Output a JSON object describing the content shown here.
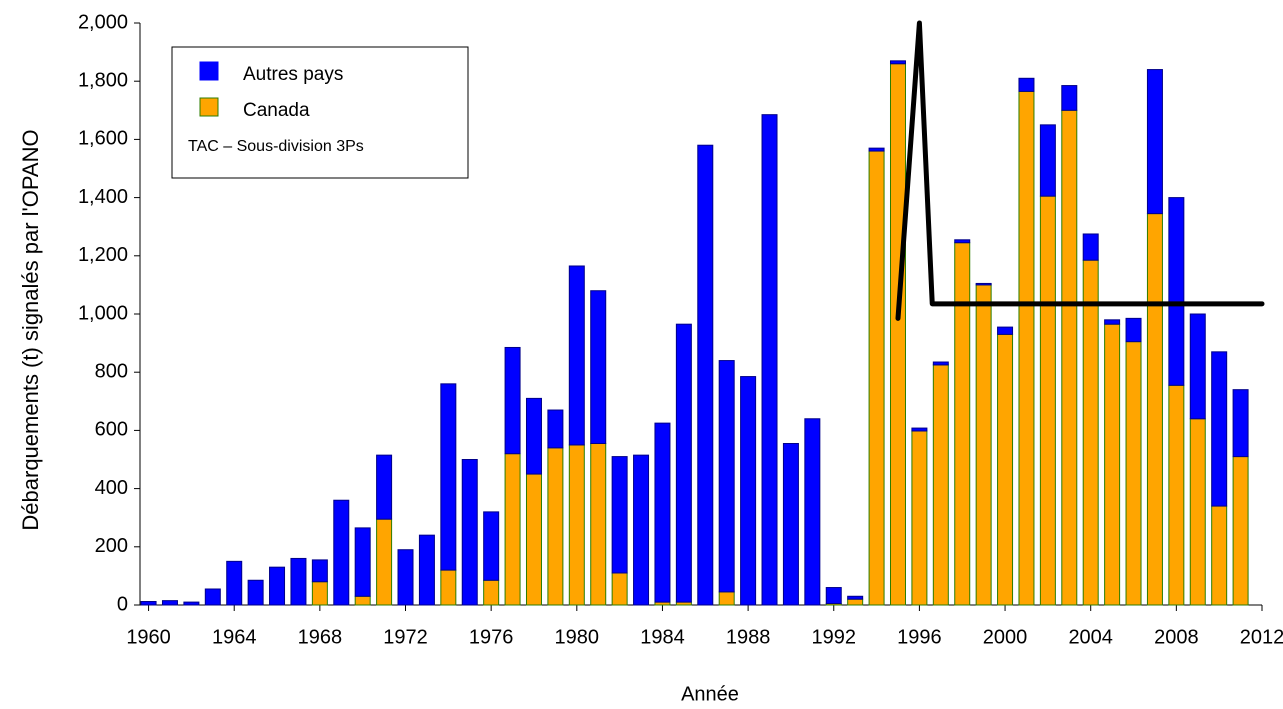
{
  "chart_data": {
    "type": "bar",
    "stacked": true,
    "x_label": "Année",
    "y_label": "Débarquements (t) signalés par l'OPANO",
    "x": [
      1960,
      1961,
      1962,
      1963,
      1964,
      1965,
      1966,
      1967,
      1968,
      1969,
      1970,
      1971,
      1972,
      1973,
      1974,
      1975,
      1976,
      1977,
      1978,
      1979,
      1980,
      1981,
      1982,
      1983,
      1984,
      1985,
      1986,
      1987,
      1988,
      1989,
      1990,
      1991,
      1992,
      1993,
      1994,
      1995,
      1996,
      1997,
      1998,
      1999,
      2000,
      2001,
      2002,
      2003,
      2004,
      2005,
      2006,
      2007,
      2008,
      2009,
      2010,
      2011
    ],
    "series": [
      {
        "name": "Autres pays",
        "color": "#0000ff",
        "values": [
          12,
          15,
          10,
          55,
          150,
          85,
          130,
          160,
          75,
          360,
          235,
          220,
          190,
          240,
          640,
          500,
          235,
          365,
          260,
          130,
          615,
          525,
          400,
          515,
          615,
          955,
          1580,
          795,
          785,
          1685,
          555,
          640,
          55,
          10,
          10,
          10,
          10,
          10,
          10,
          5,
          25,
          45,
          245,
          85,
          90,
          15,
          80,
          495,
          645,
          360,
          530,
          230
        ]
      },
      {
        "name": "Canada",
        "color": "#ffa500",
        "values": [
          0,
          0,
          0,
          0,
          0,
          0,
          0,
          0,
          80,
          0,
          30,
          295,
          0,
          0,
          120,
          0,
          85,
          520,
          450,
          540,
          550,
          555,
          110,
          0,
          10,
          10,
          0,
          45,
          0,
          0,
          0,
          0,
          5,
          20,
          1560,
          1860,
          598,
          825,
          1245,
          1100,
          930,
          1765,
          1405,
          1700,
          1185,
          965,
          905,
          1345,
          755,
          640,
          340,
          510
        ]
      },
      {
        "name": "TAC – Sous-division 3Ps",
        "type": "line",
        "color": "#000000",
        "x": [
          1995,
          1996,
          1996.6,
          2012
        ],
        "values": [
          985,
          2000,
          1035,
          1035
        ]
      }
    ],
    "xlim": [
      1959.6,
      2012
    ],
    "xticks": [
      1960,
      1964,
      1968,
      1972,
      1976,
      1980,
      1984,
      1988,
      1992,
      1996,
      2000,
      2004,
      2008,
      2012
    ],
    "ylim": [
      0,
      2000
    ],
    "yticks": [
      0,
      200,
      400,
      600,
      800,
      {
        "value": 1000,
        "label": "1,000"
      },
      {
        "value": 1200,
        "label": "1,200"
      },
      {
        "value": 1400,
        "label": "1,400"
      },
      {
        "value": 1600,
        "label": "1,600"
      },
      {
        "value": 1800,
        "label": "1,800"
      },
      {
        "value": 2000,
        "label": "2,000"
      }
    ],
    "grid": false,
    "legend": "upper left"
  }
}
